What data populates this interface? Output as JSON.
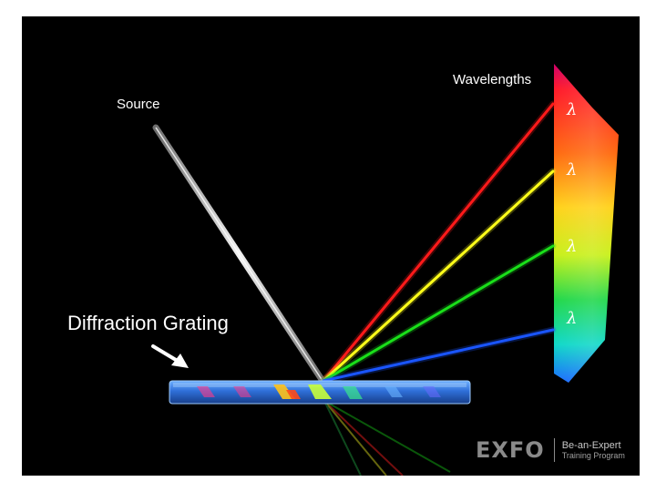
{
  "labels": {
    "source": "Source",
    "wavelengths": "Wavelengths",
    "grating": "Diffraction Grating"
  },
  "lambda_symbol": "λ",
  "beams": [
    {
      "color": "#ff1a1a"
    },
    {
      "color": "#ffff1a"
    },
    {
      "color": "#1adf1a"
    },
    {
      "color": "#1a55ff"
    }
  ],
  "logo": {
    "mark": "EXFO",
    "line1": "Be-an-Expert",
    "line2": "Training Program"
  },
  "colors": {
    "background": "#000000",
    "source_beam": "#bdbdbd",
    "grating": "#2f6fd8",
    "text": "#ffffff"
  },
  "icons": [
    "arrow-pointer-icon"
  ]
}
